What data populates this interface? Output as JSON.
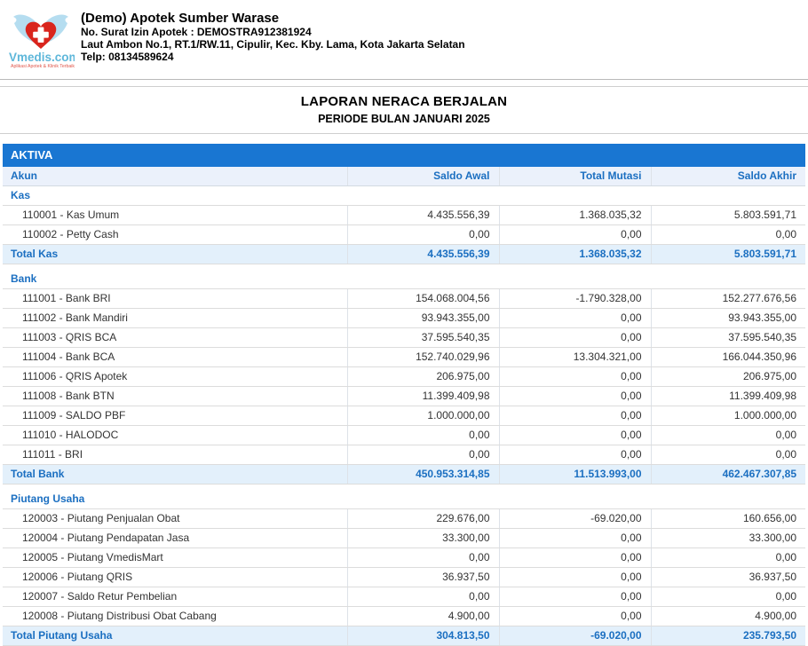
{
  "header": {
    "logo": {
      "name": "vmedis-logo",
      "text": "Vmedis.com",
      "tagline": "Aplikasi Apotek & Klinik Terbaik"
    },
    "pharmacy_name": "(Demo) Apotek Sumber Warase",
    "license": "No. Surat Izin Apotek : DEMOSTRA912381924",
    "address": "Laut Ambon No.1, RT.1/RW.11, Cipulir, Kec. Kby. Lama, Kota Jakarta Selatan",
    "phone": "Telp: 08134589624"
  },
  "report": {
    "title": "LAPORAN NERACA BERJALAN",
    "period": "PERIODE BULAN JANUARI 2025"
  },
  "section_bar": {
    "label": "AKTIVA"
  },
  "table": {
    "columns": [
      "Akun",
      "Saldo Awal",
      "Total Mutasi",
      "Saldo Akhir"
    ],
    "groups": [
      {
        "name": "Kas",
        "rows": [
          {
            "account": "110001 - Kas Umum",
            "saldo_awal": "4.435.556,39",
            "total_mutasi": "1.368.035,32",
            "saldo_akhir": "5.803.591,71"
          },
          {
            "account": "110002 - Petty Cash",
            "saldo_awal": "0,00",
            "total_mutasi": "0,00",
            "saldo_akhir": "0,00"
          }
        ],
        "total": {
          "label": "Total Kas",
          "saldo_awal": "4.435.556,39",
          "total_mutasi": "1.368.035,32",
          "saldo_akhir": "5.803.591,71"
        }
      },
      {
        "name": "Bank",
        "rows": [
          {
            "account": "111001 - Bank BRI",
            "saldo_awal": "154.068.004,56",
            "total_mutasi": "-1.790.328,00",
            "saldo_akhir": "152.277.676,56"
          },
          {
            "account": "111002 - Bank Mandiri",
            "saldo_awal": "93.943.355,00",
            "total_mutasi": "0,00",
            "saldo_akhir": "93.943.355,00"
          },
          {
            "account": "111003 - QRIS BCA",
            "saldo_awal": "37.595.540,35",
            "total_mutasi": "0,00",
            "saldo_akhir": "37.595.540,35"
          },
          {
            "account": "111004 - Bank BCA",
            "saldo_awal": "152.740.029,96",
            "total_mutasi": "13.304.321,00",
            "saldo_akhir": "166.044.350,96"
          },
          {
            "account": "111006 - QRIS Apotek",
            "saldo_awal": "206.975,00",
            "total_mutasi": "0,00",
            "saldo_akhir": "206.975,00"
          },
          {
            "account": "111008 - Bank BTN",
            "saldo_awal": "11.399.409,98",
            "total_mutasi": "0,00",
            "saldo_akhir": "11.399.409,98"
          },
          {
            "account": "111009 - SALDO PBF",
            "saldo_awal": "1.000.000,00",
            "total_mutasi": "0,00",
            "saldo_akhir": "1.000.000,00"
          },
          {
            "account": "111010 - HALODOC",
            "saldo_awal": "0,00",
            "total_mutasi": "0,00",
            "saldo_akhir": "0,00"
          },
          {
            "account": "111011 - BRI",
            "saldo_awal": "0,00",
            "total_mutasi": "0,00",
            "saldo_akhir": "0,00"
          }
        ],
        "total": {
          "label": "Total Bank",
          "saldo_awal": "450.953.314,85",
          "total_mutasi": "11.513.993,00",
          "saldo_akhir": "462.467.307,85"
        }
      },
      {
        "name": "Piutang Usaha",
        "rows": [
          {
            "account": "120003 - Piutang Penjualan Obat",
            "saldo_awal": "229.676,00",
            "total_mutasi": "-69.020,00",
            "saldo_akhir": "160.656,00"
          },
          {
            "account": "120004 - Piutang Pendapatan Jasa",
            "saldo_awal": "33.300,00",
            "total_mutasi": "0,00",
            "saldo_akhir": "33.300,00"
          },
          {
            "account": "120005 - Piutang VmedisMart",
            "saldo_awal": "0,00",
            "total_mutasi": "0,00",
            "saldo_akhir": "0,00"
          },
          {
            "account": "120006 - Piutang QRIS",
            "saldo_awal": "36.937,50",
            "total_mutasi": "0,00",
            "saldo_akhir": "36.937,50"
          },
          {
            "account": "120007 - Saldo Retur Pembelian",
            "saldo_awal": "0,00",
            "total_mutasi": "0,00",
            "saldo_akhir": "0,00"
          },
          {
            "account": "120008 - Piutang Distribusi Obat Cabang",
            "saldo_awal": "4.900,00",
            "total_mutasi": "0,00",
            "saldo_akhir": "4.900,00"
          }
        ],
        "total": {
          "label": "Total Piutang Usaha",
          "saldo_awal": "304.813,50",
          "total_mutasi": "-69.020,00",
          "saldo_akhir": "235.793,50"
        }
      }
    ]
  },
  "colors": {
    "accent_bar_blue": "#1976d2",
    "text_blue": "#1b6fc1",
    "column_header_bg": "#ebf1fb",
    "total_row_bg": "#e3f0fb",
    "row_border": "#dcdcdc",
    "logo_blue": "#5eb7da",
    "logo_red": "#d9251d"
  }
}
